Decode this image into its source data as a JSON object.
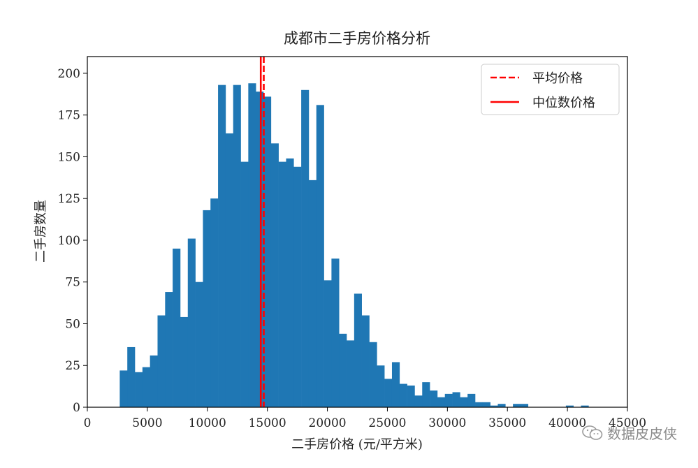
{
  "chart_data": {
    "type": "bar",
    "title": "成都市二手房价格分析",
    "xlabel": "二手房价格 (元/平方米)",
    "ylabel": "二手房数量",
    "xlim": [
      0,
      45000
    ],
    "ylim": [
      0,
      210
    ],
    "x_ticks": [
      0,
      5000,
      10000,
      15000,
      20000,
      25000,
      30000,
      35000,
      40000,
      45000
    ],
    "y_ticks": [
      0,
      25,
      50,
      75,
      100,
      125,
      150,
      175,
      200
    ],
    "bin_start": 2700,
    "bin_width": 630,
    "values": [
      22,
      36,
      21,
      24,
      31,
      55,
      69,
      95,
      54,
      101,
      75,
      118,
      125,
      193,
      164,
      193,
      147,
      194,
      189,
      186,
      158,
      147,
      149,
      144,
      190,
      136,
      181,
      76,
      89,
      44,
      40,
      68,
      55,
      39,
      25,
      17,
      27,
      14,
      13,
      7,
      15,
      10,
      6,
      8,
      9,
      6,
      8,
      3,
      3,
      1,
      2,
      0,
      2,
      2,
      0,
      0,
      0,
      0,
      0,
      1,
      0,
      1
    ],
    "mean_line": 14700,
    "median_line": 14450,
    "legend": [
      {
        "label": "平均价格",
        "style": "dashed",
        "color": "#ff0000"
      },
      {
        "label": "中位数价格",
        "style": "solid",
        "color": "#ff0000"
      }
    ],
    "legend_position": "top-right",
    "bar_color": "#1f77b4",
    "grid": false
  },
  "watermark": {
    "text": "数据皮皮侠",
    "icon": "wechat-icon"
  }
}
